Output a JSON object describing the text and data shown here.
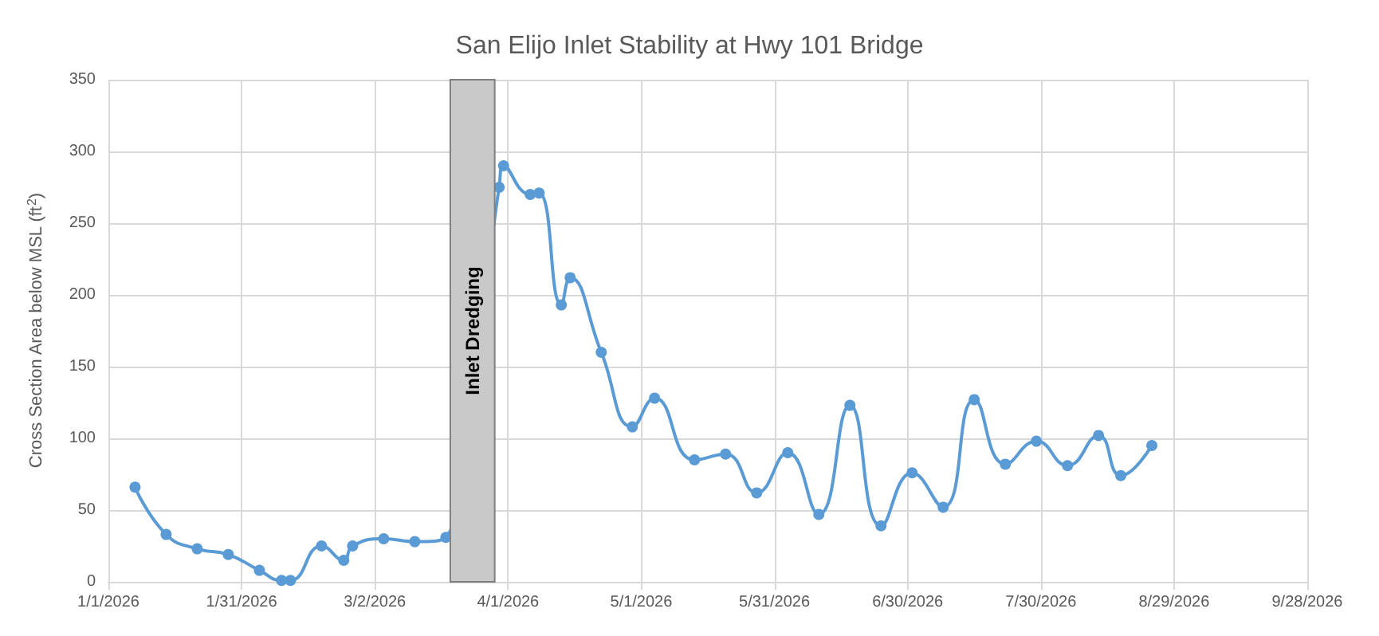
{
  "chart_data": {
    "type": "line",
    "title": "San Elijo Inlet Stability at Hwy 101 Bridge",
    "ylabel": "Cross Section Area below MSL (ft$^{2}$)",
    "x": [
      "2026-01-07",
      "2026-01-14",
      "2026-01-21",
      "2026-01-28",
      "2026-02-04",
      "2026-02-09",
      "2026-02-11",
      "2026-02-18",
      "2026-02-23",
      "2026-02-25",
      "2026-03-04",
      "2026-03-11",
      "2026-03-18",
      "2026-03-30",
      "2026-03-31",
      "2026-04-06",
      "2026-04-08",
      "2026-04-13",
      "2026-04-15",
      "2026-04-22",
      "2026-04-29",
      "2026-05-04",
      "2026-05-13",
      "2026-05-20",
      "2026-05-27",
      "2026-06-03",
      "2026-06-10",
      "2026-06-17",
      "2026-06-24",
      "2026-07-01",
      "2026-07-08",
      "2026-07-15",
      "2026-07-22",
      "2026-07-29",
      "2026-08-05",
      "2026-08-12",
      "2026-08-17",
      "2026-08-24"
    ],
    "series": [
      {
        "color": "#5b9bd5",
        "values": [
          66,
          33,
          23,
          19,
          8,
          1,
          1,
          25,
          15,
          25,
          30,
          28,
          31,
          275,
          290,
          270,
          271,
          193,
          212,
          160,
          108,
          128,
          85,
          89,
          62,
          90,
          47,
          123,
          39,
          76,
          52,
          127,
          82,
          98,
          81,
          102,
          74,
          95
        ]
      }
    ],
    "xlim": [
      "2026-01-01",
      "2026-09-28"
    ],
    "xticks": [
      {
        "value": "2026-01-01",
        "label": "1/1/2026"
      },
      {
        "value": "2026-01-31",
        "label": "1/31/2026"
      },
      {
        "value": "2026-03-02",
        "label": "3/2/2026"
      },
      {
        "value": "2026-04-01",
        "label": "4/1/2026"
      },
      {
        "value": "2026-05-01",
        "label": "5/1/2026"
      },
      {
        "value": "2026-05-31",
        "label": "5/31/2026"
      },
      {
        "value": "2026-06-30",
        "label": "6/30/2026"
      },
      {
        "value": "2026-07-30",
        "label": "7/30/2026"
      },
      {
        "value": "2026-08-29",
        "label": "8/29/2026"
      },
      {
        "value": "2026-09-28",
        "label": "9/28/2026"
      }
    ],
    "ylim": [
      0,
      350
    ],
    "yticks": [
      0,
      50,
      100,
      150,
      200,
      250,
      300,
      350
    ],
    "bands": [
      {
        "axis": "x",
        "from": "2026-03-19",
        "to": "2026-03-29",
        "label": "Inlet Dredging",
        "color": "#c9c9c9"
      }
    ],
    "grid": true,
    "marker": "circle",
    "line_style": "solid"
  }
}
